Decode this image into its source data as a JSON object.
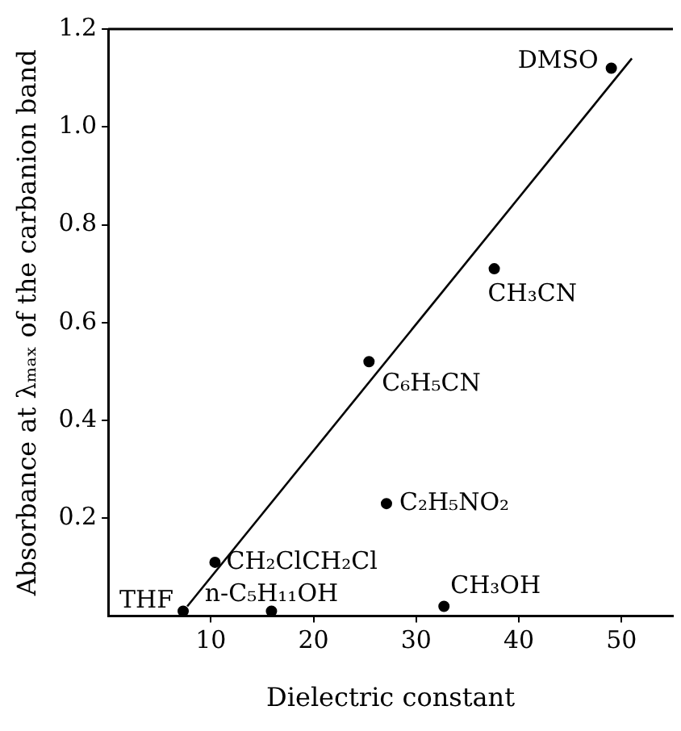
{
  "chart_data": {
    "type": "scatter",
    "xlabel": "Dielectric constant",
    "ylabel": "Absorbance at λₘₐₓ of the carbanion band",
    "xlim": [
      0,
      55
    ],
    "xticks": [
      10,
      20,
      30,
      40,
      50
    ],
    "ylim": [
      0,
      1.2
    ],
    "yticks": [
      0.2,
      0.4,
      0.6,
      0.8,
      {
        "value": 1,
        "label": "1.0"
      },
      1.2
    ],
    "grid": false,
    "legend": false,
    "marker": "circle",
    "series": [
      {
        "color": "#000000",
        "x": [
          7.3,
          10.4,
          15.9,
          25.4,
          27.1,
          32.7,
          37.6,
          49.0
        ],
        "values": [
          0.01,
          0.11,
          0.01,
          0.52,
          0.23,
          0.02,
          0.71,
          1.12
        ]
      },
      {
        "type": "line",
        "marker": "none",
        "color": "#000000",
        "x": [
          7.7,
          51.0
        ],
        "values": [
          0.02,
          1.14
        ]
      }
    ],
    "annotations": [
      {
        "text": "THF",
        "x": 7.3,
        "y": 0.01
      },
      {
        "text": "CH₂ClCH₂Cl",
        "x": 10.4,
        "y": 0.11
      },
      {
        "text": "n-C₅H₁₁OH",
        "x": 15.9,
        "y": 0.01
      },
      {
        "text": "C₆H₅CN",
        "x": 25.4,
        "y": 0.52
      },
      {
        "text": "C₂H₅NO₂",
        "x": 27.1,
        "y": 0.23
      },
      {
        "text": "CH₃OH",
        "x": 32.7,
        "y": 0.02
      },
      {
        "text": "CH₃CN",
        "x": 37.6,
        "y": 0.71
      },
      {
        "text": "DMSO",
        "x": 49.0,
        "y": 1.12
      }
    ]
  }
}
